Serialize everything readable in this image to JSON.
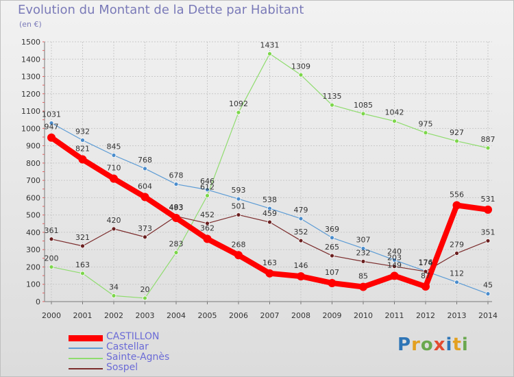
{
  "title": "Evolution du Montant de la Dette par Habitant",
  "subtitle": "(en €)",
  "brand": {
    "letters": [
      "P",
      "r",
      "o",
      "x",
      "i",
      "t",
      "i"
    ],
    "colors": [
      "#2e75b6",
      "#e3a020",
      "#6aa84f",
      "#e34a2f",
      "#2e75b6",
      "#e3a020",
      "#6aa84f"
    ]
  },
  "chart_data": {
    "type": "line",
    "title": "Evolution du Montant de la Dette par Habitant",
    "subtitle": "(en €)",
    "xlabel": "",
    "ylabel": "",
    "ylim": [
      0,
      1500
    ],
    "y_ticks": [
      0,
      100,
      200,
      300,
      400,
      500,
      600,
      700,
      800,
      900,
      1000,
      1100,
      1200,
      1300,
      1400,
      1500
    ],
    "x": [
      "2000",
      "2001",
      "2002",
      "2003",
      "2004",
      "2005",
      "2006",
      "2007",
      "2008",
      "2009",
      "2010",
      "2011",
      "2012",
      "2013",
      "2014"
    ],
    "grid": "horizontal dashed",
    "legend_position": "bottom-left",
    "series": [
      {
        "name": "CASTILLON",
        "color": "#ff0000",
        "values": [
          947,
          821,
          710,
          604,
          483,
          362,
          268,
          163,
          146,
          107,
          85,
          149,
          87,
          556,
          531
        ]
      },
      {
        "name": "Castellar",
        "color": "#5b9bd5",
        "values": [
          1031,
          932,
          845,
          768,
          678,
          646,
          593,
          538,
          479,
          369,
          307,
          240,
          176,
          112,
          45
        ]
      },
      {
        "name": "Sainte-Agnès",
        "color": "#8fdc6e",
        "values": [
          200,
          163,
          34,
          20,
          283,
          612,
          1092,
          1431,
          1309,
          1135,
          1085,
          1042,
          975,
          927,
          887
        ]
      },
      {
        "name": "Sospel",
        "color": "#7b2c2c",
        "values": [
          361,
          321,
          420,
          373,
          493,
          452,
          501,
          459,
          352,
          265,
          232,
          203,
          174,
          279,
          351
        ]
      }
    ]
  }
}
